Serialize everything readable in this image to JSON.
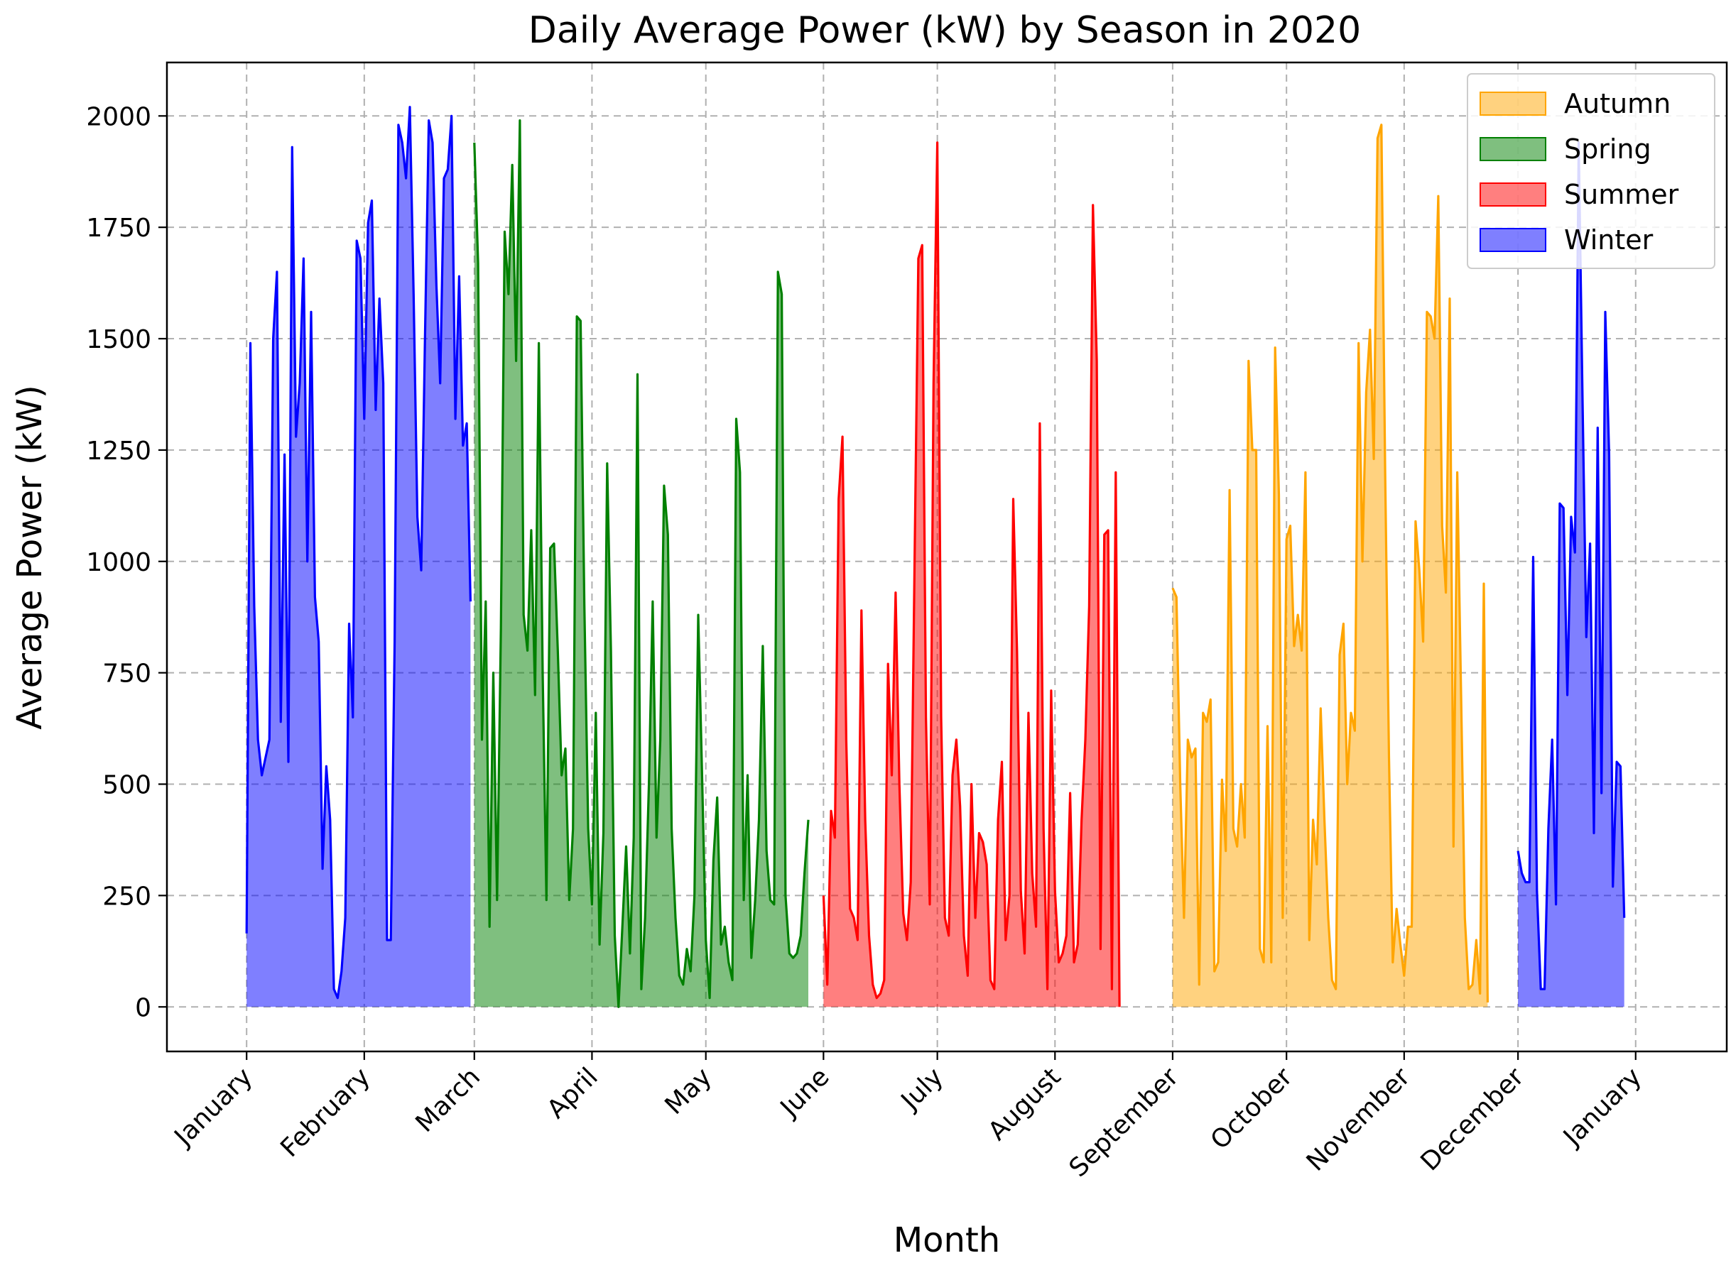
{
  "chart_data": {
    "type": "area",
    "title": "Daily Average Power (kW) by Season in 2020",
    "xlabel": "Month",
    "ylabel": "Average Power (kW)",
    "ylim": [
      -100,
      2120
    ],
    "xlim_days": [
      -21,
      390
    ],
    "yticks": [
      0,
      250,
      500,
      750,
      1000,
      1250,
      1500,
      1750,
      2000
    ],
    "x_ticks": [
      {
        "label": "January",
        "day": 0
      },
      {
        "label": "February",
        "day": 31
      },
      {
        "label": "March",
        "day": 60
      },
      {
        "label": "April",
        "day": 91
      },
      {
        "label": "May",
        "day": 121
      },
      {
        "label": "June",
        "day": 152
      },
      {
        "label": "July",
        "day": 182
      },
      {
        "label": "August",
        "day": 213
      },
      {
        "label": "September",
        "day": 244
      },
      {
        "label": "October",
        "day": 274
      },
      {
        "label": "November",
        "day": 305
      },
      {
        "label": "December",
        "day": 335
      },
      {
        "label": "January",
        "day": 366
      }
    ],
    "x_unit": "day of year 2020 (0 = Jan 1)",
    "legend_position": "top-right",
    "legend": [
      {
        "name": "Autumn",
        "color": "#ffa500"
      },
      {
        "name": "Spring",
        "color": "#008000"
      },
      {
        "name": "Summer",
        "color": "#ff0000"
      },
      {
        "name": "Winter",
        "color": "#0000ff"
      }
    ],
    "series": [
      {
        "name": "Winter",
        "color": "#0000ff",
        "fill_opacity": 0.5,
        "start_day": 0,
        "values": [
          165,
          1490,
          900,
          600,
          520,
          560,
          600,
          1500,
          1650,
          640,
          1240,
          550,
          1930,
          1280,
          1400,
          1680,
          1000,
          1560,
          920,
          820,
          310,
          540,
          420,
          40,
          20,
          80,
          200,
          860,
          650,
          1720,
          1680,
          1320,
          1760,
          1810,
          1340,
          1590,
          1400,
          150,
          150,
          820,
          1980,
          1940,
          1860,
          2020,
          1600,
          1100,
          980,
          1500,
          1990,
          1940,
          1620,
          1400,
          1860,
          1880,
          2000,
          1320,
          1640,
          1260,
          1310,
          910
        ]
      },
      {
        "name": "Spring",
        "color": "#008000",
        "fill_opacity": 0.5,
        "start_day": 60,
        "values": [
          1940,
          1670,
          600,
          910,
          180,
          750,
          240,
          850,
          1740,
          1600,
          1890,
          1450,
          1990,
          880,
          800,
          1070,
          700,
          1490,
          750,
          240,
          1030,
          1040,
          800,
          520,
          580,
          240,
          400,
          1550,
          1540,
          900,
          400,
          230,
          660,
          140,
          390,
          1220,
          800,
          160,
          0,
          180,
          360,
          120,
          380,
          1420,
          40,
          200,
          500,
          910,
          380,
          600,
          1170,
          1060,
          400,
          200,
          70,
          50,
          130,
          80,
          250,
          880,
          520,
          150,
          20,
          330,
          470,
          140,
          180,
          100,
          60,
          1320,
          1200,
          240,
          520,
          110,
          240,
          420,
          810,
          350,
          240,
          230,
          1650,
          1600,
          250,
          120,
          110,
          120,
          160,
          300,
          420
        ]
      },
      {
        "name": "Summer",
        "color": "#ff0000",
        "fill_opacity": 0.5,
        "start_day": 152,
        "values": [
          250,
          50,
          440,
          380,
          1140,
          1280,
          600,
          220,
          200,
          150,
          890,
          420,
          160,
          50,
          20,
          30,
          60,
          770,
          520,
          930,
          500,
          210,
          150,
          280,
          1000,
          1680,
          1710,
          650,
          230,
          1400,
          1940,
          650,
          200,
          160,
          520,
          600,
          450,
          160,
          70,
          500,
          200,
          390,
          370,
          320,
          60,
          40,
          420,
          550,
          150,
          250,
          1140,
          800,
          260,
          120,
          660,
          300,
          180,
          1310,
          400,
          40,
          710,
          260,
          100,
          120,
          160,
          480,
          100,
          140,
          420,
          600,
          900,
          1800,
          1450,
          130,
          1060,
          1070,
          40,
          1200,
          0
        ]
      },
      {
        "name": "Autumn",
        "color": "#ffa500",
        "fill_opacity": 0.5,
        "start_day": 244,
        "values": [
          940,
          920,
          500,
          200,
          600,
          560,
          580,
          50,
          660,
          640,
          690,
          80,
          100,
          510,
          350,
          1160,
          400,
          360,
          500,
          380,
          1450,
          1250,
          1250,
          130,
          100,
          630,
          100,
          1480,
          1150,
          200,
          1050,
          1080,
          810,
          880,
          800,
          1200,
          150,
          420,
          320,
          670,
          420,
          200,
          60,
          40,
          790,
          860,
          500,
          660,
          620,
          1490,
          1000,
          1380,
          1520,
          1230,
          1950,
          1980,
          1200,
          560,
          100,
          220,
          140,
          70,
          180,
          180,
          1090,
          980,
          820,
          1560,
          1550,
          1500,
          1820,
          1080,
          930,
          1590,
          360,
          1200,
          700,
          200,
          40,
          50,
          150,
          30,
          950,
          10
        ]
      },
      {
        "name": "Winter",
        "color": "#0000ff",
        "fill_opacity": 0.5,
        "start_day": 335,
        "values": [
          350,
          300,
          280,
          280,
          1010,
          260,
          40,
          40,
          400,
          600,
          230,
          1130,
          1120,
          700,
          1100,
          1020,
          1940,
          1360,
          830,
          1040,
          390,
          1300,
          480,
          1560,
          1240,
          270,
          550,
          540,
          200
        ]
      }
    ]
  }
}
